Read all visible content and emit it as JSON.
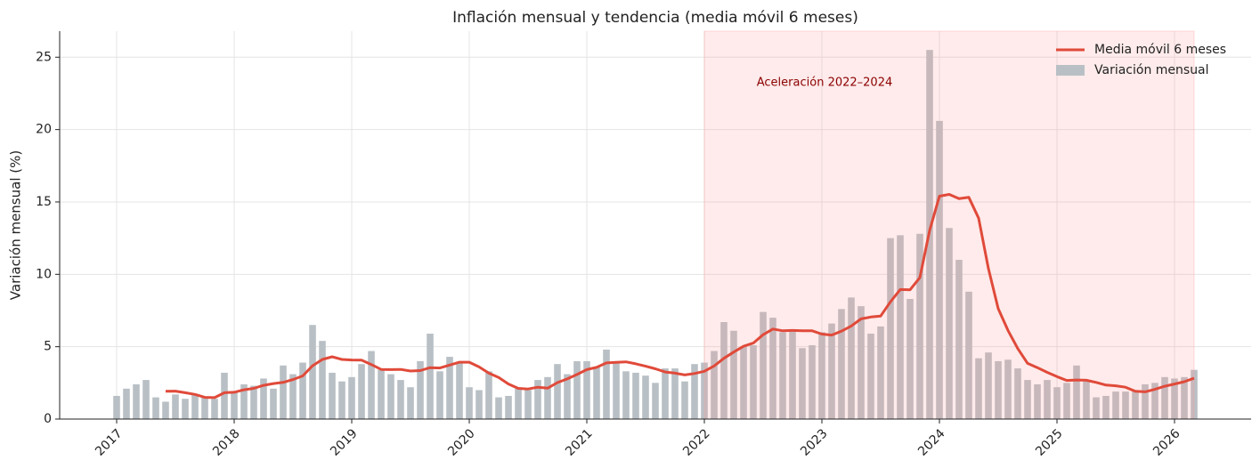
{
  "chart_data": {
    "type": "bar",
    "title": "Inflación mensual y tendencia (media móvil 6 meses)",
    "y_label": "Variación mensual (%)",
    "annotation": "Aceleración 2022–2024",
    "shade": {
      "start": "2022-01",
      "end": "2026-03",
      "color": "#ff9a9a"
    },
    "legend": "upper right",
    "grid": true,
    "categories": [
      "2017-01",
      "2017-02",
      "2017-03",
      "2017-04",
      "2017-05",
      "2017-06",
      "2017-07",
      "2017-08",
      "2017-09",
      "2017-10",
      "2017-11",
      "2017-12",
      "2018-01",
      "2018-02",
      "2018-03",
      "2018-04",
      "2018-05",
      "2018-06",
      "2018-07",
      "2018-08",
      "2018-09",
      "2018-10",
      "2018-11",
      "2018-12",
      "2019-01",
      "2019-02",
      "2019-03",
      "2019-04",
      "2019-05",
      "2019-06",
      "2019-07",
      "2019-08",
      "2019-09",
      "2019-10",
      "2019-11",
      "2019-12",
      "2020-01",
      "2020-02",
      "2020-03",
      "2020-04",
      "2020-05",
      "2020-06",
      "2020-07",
      "2020-08",
      "2020-09",
      "2020-10",
      "2020-11",
      "2020-12",
      "2021-01",
      "2021-02",
      "2021-03",
      "2021-04",
      "2021-05",
      "2021-06",
      "2021-07",
      "2021-08",
      "2021-09",
      "2021-10",
      "2021-11",
      "2021-12",
      "2022-01",
      "2022-02",
      "2022-03",
      "2022-04",
      "2022-05",
      "2022-06",
      "2022-07",
      "2022-08",
      "2022-09",
      "2022-10",
      "2022-11",
      "2022-12",
      "2023-01",
      "2023-02",
      "2023-03",
      "2023-04",
      "2023-05",
      "2023-06",
      "2023-07",
      "2023-08",
      "2023-09",
      "2023-10",
      "2023-11",
      "2023-12",
      "2024-01",
      "2024-02",
      "2024-03",
      "2024-04",
      "2024-05",
      "2024-06",
      "2024-07",
      "2024-08",
      "2024-09",
      "2024-10",
      "2024-11",
      "2024-12",
      "2025-01",
      "2025-02",
      "2025-03",
      "2025-04",
      "2025-05",
      "2025-06",
      "2025-07",
      "2025-08",
      "2025-09",
      "2025-10",
      "2025-11",
      "2025-12",
      "2026-01",
      "2026-02",
      "2026-03"
    ],
    "series": [
      {
        "name": "Media móvil 6 meses",
        "type": "line",
        "color": "#e04a3a",
        "values": [
          null,
          null,
          null,
          null,
          null,
          1.92,
          1.93,
          1.82,
          1.7,
          1.5,
          1.48,
          1.82,
          1.85,
          2.02,
          2.12,
          2.33,
          2.45,
          2.53,
          2.73,
          2.98,
          3.68,
          4.12,
          4.3,
          4.12,
          4.08,
          4.07,
          3.77,
          3.43,
          3.42,
          3.43,
          3.32,
          3.35,
          3.55,
          3.53,
          3.73,
          3.93,
          3.93,
          3.6,
          3.17,
          2.87,
          2.42,
          2.12,
          2.08,
          2.2,
          2.13,
          2.52,
          2.77,
          3.08,
          3.42,
          3.57,
          3.88,
          3.92,
          3.95,
          3.82,
          3.65,
          3.47,
          3.25,
          3.17,
          3.05,
          3.15,
          3.3,
          3.67,
          4.2,
          4.63,
          5.03,
          5.25,
          5.83,
          6.22,
          6.1,
          6.12,
          6.1,
          6.1,
          5.87,
          5.8,
          6.07,
          6.43,
          6.92,
          7.05,
          7.12,
          8.1,
          8.95,
          8.93,
          9.77,
          13.03,
          15.4,
          15.52,
          15.23,
          15.32,
          13.88,
          10.4,
          7.63,
          6.12,
          4.87,
          3.85,
          3.55,
          3.23,
          2.93,
          2.67,
          2.7,
          2.68,
          2.53,
          2.35,
          2.3,
          2.2,
          1.92,
          1.88,
          2.05,
          2.27,
          2.42,
          2.58,
          2.82
        ]
      },
      {
        "name": "Variación mensual",
        "type": "bar",
        "color": "#b9c0c5",
        "values": [
          1.6,
          2.1,
          2.4,
          2.7,
          1.5,
          1.2,
          1.7,
          1.4,
          1.7,
          1.5,
          1.4,
          3.2,
          1.9,
          2.4,
          2.3,
          2.8,
          2.1,
          3.7,
          3.1,
          3.9,
          6.5,
          5.4,
          3.2,
          2.6,
          2.9,
          3.8,
          4.7,
          3.4,
          3.1,
          2.7,
          2.2,
          4.0,
          5.9,
          3.3,
          4.3,
          3.9,
          2.2,
          2.0,
          3.3,
          1.5,
          1.6,
          2.1,
          2.0,
          2.7,
          2.9,
          3.8,
          3.1,
          4.0,
          4.0,
          3.6,
          4.8,
          4.0,
          3.3,
          3.2,
          3.0,
          2.5,
          3.5,
          3.5,
          2.6,
          3.8,
          3.9,
          4.7,
          6.7,
          6.1,
          5.0,
          5.1,
          7.4,
          7.0,
          6.0,
          6.2,
          4.9,
          5.1,
          6.0,
          6.6,
          7.6,
          8.4,
          7.8,
          5.9,
          6.4,
          12.5,
          12.7,
          8.3,
          12.8,
          25.5,
          20.6,
          13.2,
          11.0,
          8.8,
          4.2,
          4.6,
          4.0,
          4.1,
          3.5,
          2.7,
          2.4,
          2.7,
          2.2,
          2.5,
          3.7,
          2.6,
          1.5,
          1.6,
          1.9,
          1.9,
          2.0,
          2.4,
          2.5,
          2.9,
          2.8,
          2.9,
          3.4
        ]
      }
    ],
    "ylim": [
      0,
      26.8
    ],
    "yticks": [
      0,
      5,
      10,
      15,
      20,
      25
    ],
    "xticks": [
      {
        "value": "2017-01",
        "label": "2017"
      },
      {
        "value": "2018-01",
        "label": "2018"
      },
      {
        "value": "2019-01",
        "label": "2019"
      },
      {
        "value": "2020-01",
        "label": "2020"
      },
      {
        "value": "2021-01",
        "label": "2021"
      },
      {
        "value": "2022-01",
        "label": "2022"
      },
      {
        "value": "2023-01",
        "label": "2023"
      },
      {
        "value": "2024-01",
        "label": "2024"
      },
      {
        "value": "2025-01",
        "label": "2025"
      },
      {
        "value": "2026-01",
        "label": "2026"
      }
    ]
  }
}
